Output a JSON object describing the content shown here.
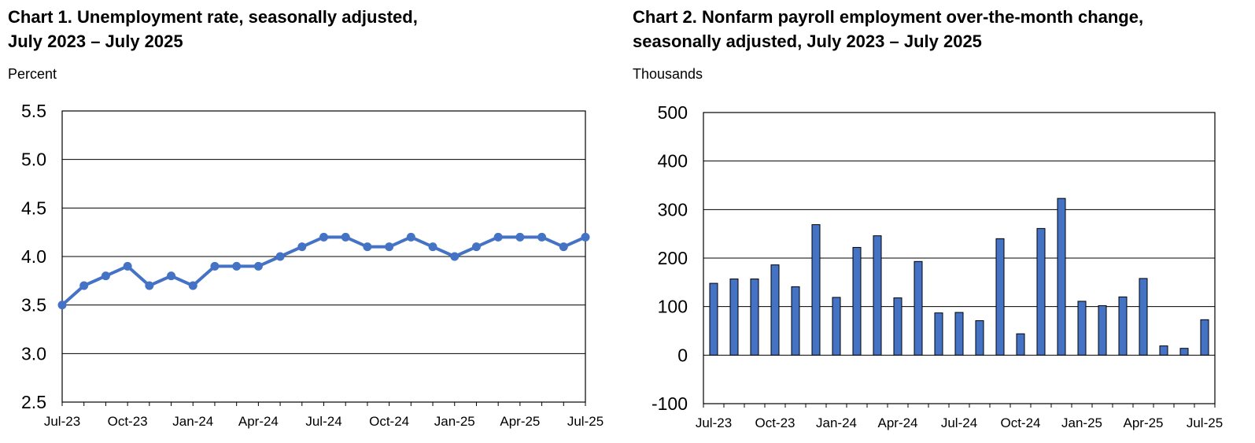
{
  "chart_data": [
    {
      "type": "line",
      "title_line1": "Chart 1. Unemployment rate, seasonally adjusted,",
      "title_line2": "July 2023 – July 2025",
      "ylabel": "Percent",
      "xlabel": "",
      "ylim": [
        2.5,
        5.5
      ],
      "yticks": [
        "5.5",
        "5.0",
        "4.5",
        "4.0",
        "3.5",
        "3.0",
        "2.5"
      ],
      "ytick_values": [
        5.5,
        5.0,
        4.5,
        4.0,
        3.5,
        3.0,
        2.5
      ],
      "xtick_labels": [
        "Jul-23",
        "Oct-23",
        "Jan-24",
        "Apr-24",
        "Jul-24",
        "Oct-24",
        "Jan-25",
        "Apr-25",
        "Jul-25"
      ],
      "xtick_indices": [
        0,
        3,
        6,
        9,
        12,
        15,
        18,
        21,
        24
      ],
      "grid": true,
      "color": "#4472c4",
      "values": [
        3.5,
        3.7,
        3.8,
        3.9,
        3.7,
        3.8,
        3.7,
        3.9,
        3.9,
        3.9,
        4.0,
        4.1,
        4.2,
        4.2,
        4.1,
        4.1,
        4.2,
        4.1,
        4.0,
        4.1,
        4.2,
        4.2,
        4.2,
        4.1,
        4.2
      ]
    },
    {
      "type": "bar",
      "title_line1": "Chart 2. Nonfarm payroll employment over-the-month change,",
      "title_line2": "seasonally adjusted, July 2023 – July 2025",
      "ylabel": "Thousands",
      "xlabel": "",
      "ylim": [
        -100,
        500
      ],
      "yticks": [
        "500",
        "400",
        "300",
        "200",
        "100",
        "0",
        "-100"
      ],
      "ytick_values": [
        500,
        400,
        300,
        200,
        100,
        0,
        -100
      ],
      "xtick_labels": [
        "Jul-23",
        "Oct-23",
        "Jan-24",
        "Apr-24",
        "Jul-24",
        "Oct-24",
        "Jan-25",
        "Apr-25",
        "Jul-25"
      ],
      "xtick_indices": [
        0,
        3,
        6,
        9,
        12,
        15,
        18,
        21,
        24
      ],
      "grid": true,
      "color": "#4472c4",
      "values": [
        148,
        157,
        157,
        186,
        141,
        269,
        119,
        222,
        246,
        118,
        193,
        87,
        88,
        71,
        240,
        44,
        261,
        323,
        111,
        102,
        120,
        158,
        19,
        14,
        73
      ]
    }
  ]
}
